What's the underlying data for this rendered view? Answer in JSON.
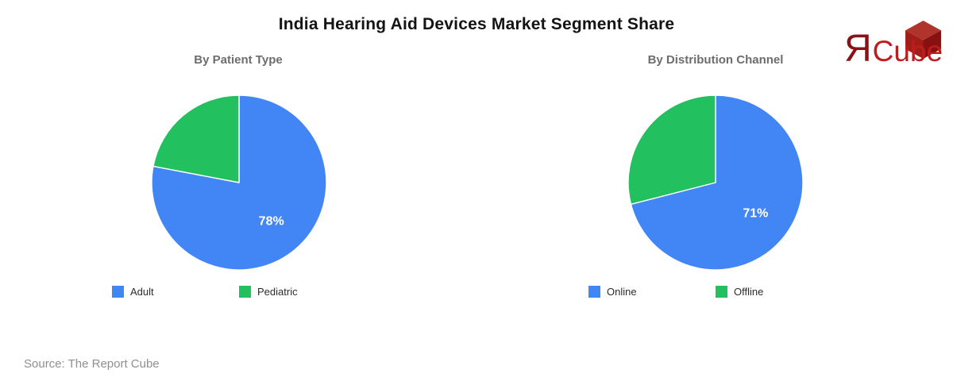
{
  "page": {
    "title": "India Hearing Aid Devices Market Segment Share",
    "source_note": "Source: The Report Cube",
    "background_color": "#ffffff",
    "logo": {
      "symbol": "Я",
      "name": "Cube",
      "symbol_color": "#8a1216",
      "name_color": "#c01b1e",
      "cube_top_color": "#b0342c",
      "cube_left_color": "#a11d18",
      "cube_right_color": "#871011"
    }
  },
  "chart_data": [
    {
      "type": "pie",
      "title": "By Patient Type",
      "labels": [
        "Adult",
        "Pediatric"
      ],
      "values": [
        78,
        22
      ],
      "colors": [
        "#4285F4",
        "#22C05E"
      ],
      "data_labels": [
        "78%",
        ""
      ],
      "data_label_color": "#ffffff",
      "start_angle_deg": 0,
      "direction": "clockwise",
      "legend_position": "bottom"
    },
    {
      "type": "pie",
      "title": "By Distribution Channel",
      "labels": [
        "Online",
        "Offline"
      ],
      "values": [
        71,
        29
      ],
      "colors": [
        "#4285F4",
        "#22C05E"
      ],
      "data_labels": [
        "71%",
        ""
      ],
      "data_label_color": "#ffffff",
      "start_angle_deg": 0,
      "direction": "clockwise",
      "legend_position": "bottom"
    }
  ]
}
